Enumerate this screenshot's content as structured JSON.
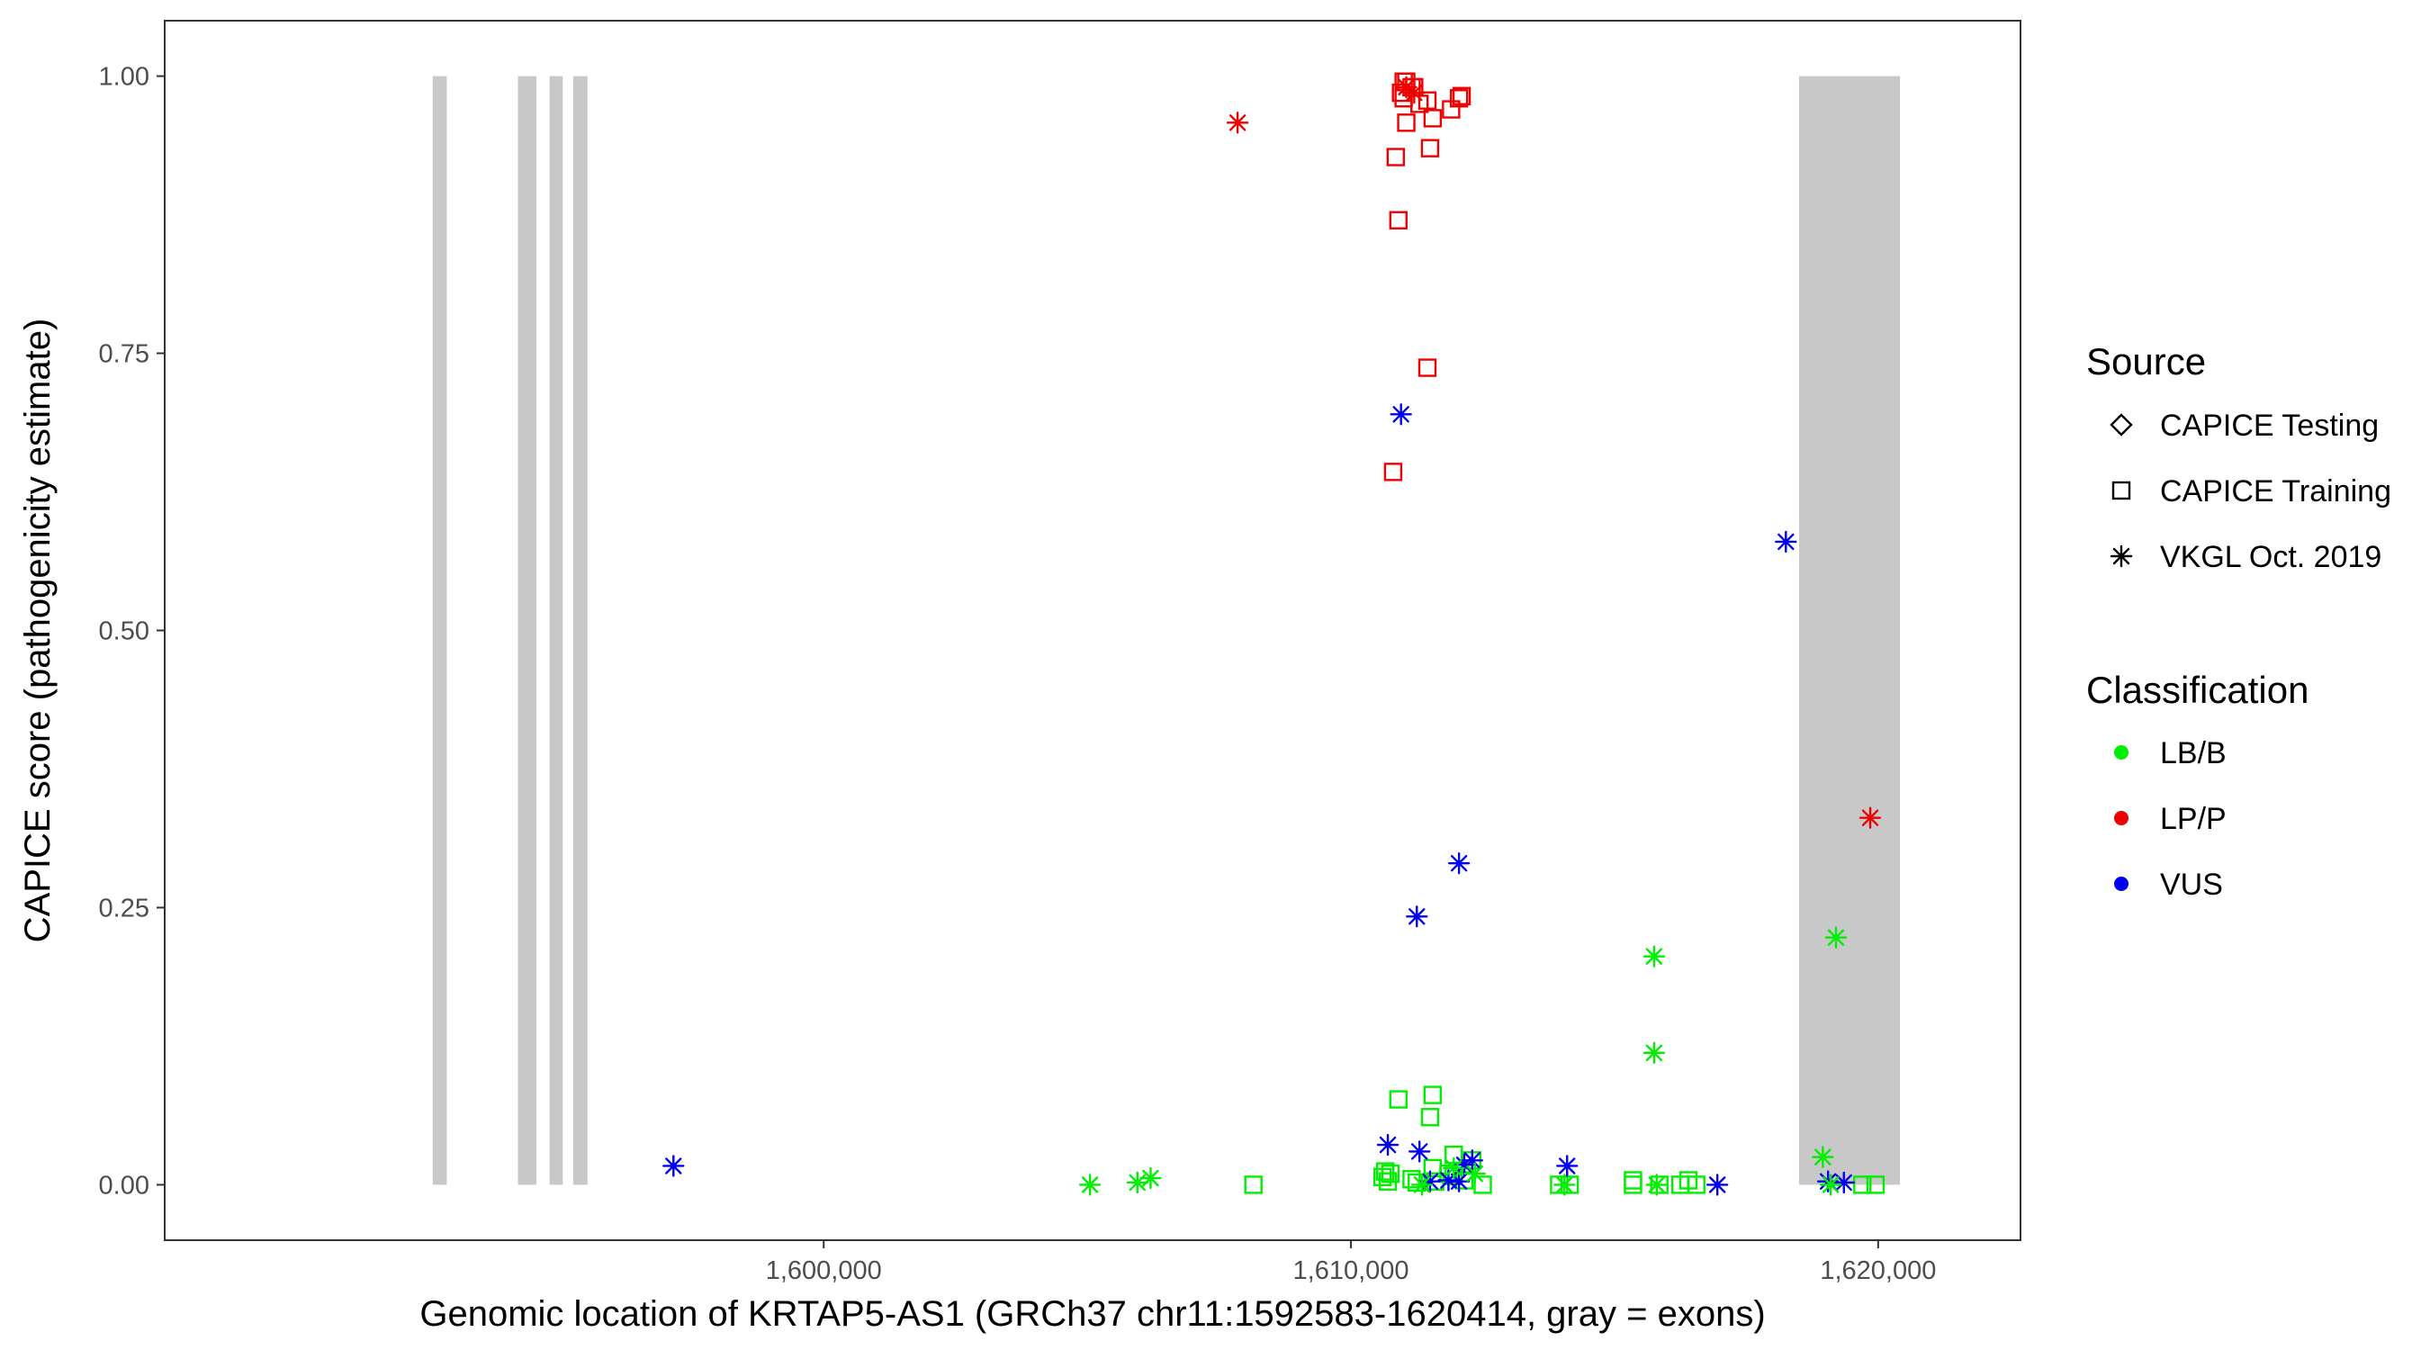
{
  "chart_data": {
    "type": "scatter",
    "xlabel": "Genomic location of KRTAP5-AS1 (GRCh37 chr11:1592583-1620414, gray = exons)",
    "ylabel": "CAPICE score (pathogenicity estimate)",
    "xlim": [
      1587500,
      1622700
    ],
    "ylim": [
      -0.05,
      1.05
    ],
    "x_ticks": [
      1600000,
      1610000,
      1620000
    ],
    "x_tick_labels": [
      "1,600,000",
      "1,610,000",
      "1,620,000"
    ],
    "y_ticks": [
      0,
      0.25,
      0.5,
      0.75,
      1.0
    ],
    "y_tick_labels": [
      "0.00",
      "0.25",
      "0.50",
      "0.75",
      "1.00"
    ],
    "grid": false,
    "exon_color": "#c8c8c8",
    "exons": [
      {
        "start": 1592583,
        "end": 1592850
      },
      {
        "start": 1594200,
        "end": 1594550
      },
      {
        "start": 1594800,
        "end": 1595050
      },
      {
        "start": 1595250,
        "end": 1595520
      },
      {
        "start": 1618500,
        "end": 1620414
      }
    ],
    "legend": {
      "position": "right",
      "source_title": "Source",
      "source_items": [
        {
          "label": "CAPICE Testing",
          "shape": "diamond"
        },
        {
          "label": "CAPICE Training",
          "shape": "square"
        },
        {
          "label": "VKGL Oct. 2019",
          "shape": "asterisk"
        }
      ],
      "class_title": "Classification",
      "class_items": [
        {
          "label": "LB/B",
          "color": "#00ee00"
        },
        {
          "label": "LP/P",
          "color": "#ee0000"
        },
        {
          "label": "VUS",
          "color": "#0000ee"
        }
      ]
    },
    "series": [
      {
        "name": "CAPICE Training",
        "shape": "square",
        "points": [
          {
            "x": 1611000,
            "y": 0.995,
            "c": "LP/P"
          },
          {
            "x": 1611150,
            "y": 0.99,
            "c": "LP/P"
          },
          {
            "x": 1610950,
            "y": 0.985,
            "c": "LP/P"
          },
          {
            "x": 1611200,
            "y": 0.99,
            "c": "LP/P"
          },
          {
            "x": 1611050,
            "y": 0.995,
            "c": "LP/P"
          },
          {
            "x": 1612100,
            "y": 0.982,
            "c": "LP/P"
          },
          {
            "x": 1612050,
            "y": 0.98,
            "c": "LP/P"
          },
          {
            "x": 1611450,
            "y": 0.978,
            "c": "LP/P"
          },
          {
            "x": 1611000,
            "y": 0.98,
            "c": "LP/P"
          },
          {
            "x": 1611300,
            "y": 0.975,
            "c": "LP/P"
          },
          {
            "x": 1611900,
            "y": 0.97,
            "c": "LP/P"
          },
          {
            "x": 1611550,
            "y": 0.962,
            "c": "LP/P"
          },
          {
            "x": 1611050,
            "y": 0.958,
            "c": "LP/P"
          },
          {
            "x": 1611500,
            "y": 0.935,
            "c": "LP/P"
          },
          {
            "x": 1610850,
            "y": 0.927,
            "c": "LP/P"
          },
          {
            "x": 1610900,
            "y": 0.87,
            "c": "LP/P"
          },
          {
            "x": 1611450,
            "y": 0.737,
            "c": "LP/P"
          },
          {
            "x": 1610800,
            "y": 0.643,
            "c": "LP/P"
          },
          {
            "x": 1611550,
            "y": 0.081,
            "c": "LB/B"
          },
          {
            "x": 1610900,
            "y": 0.077,
            "c": "LB/B"
          },
          {
            "x": 1611500,
            "y": 0.061,
            "c": "LB/B"
          },
          {
            "x": 1611950,
            "y": 0.027,
            "c": "LB/B"
          },
          {
            "x": 1612300,
            "y": 0.022,
            "c": "LB/B"
          },
          {
            "x": 1611550,
            "y": 0.015,
            "c": "LB/B"
          },
          {
            "x": 1610650,
            "y": 0.012,
            "c": "LB/B"
          },
          {
            "x": 1610750,
            "y": 0.01,
            "c": "LB/B"
          },
          {
            "x": 1611850,
            "y": 0.01,
            "c": "LB/B"
          },
          {
            "x": 1610600,
            "y": 0.007,
            "c": "LB/B"
          },
          {
            "x": 1611150,
            "y": 0.005,
            "c": "LB/B"
          },
          {
            "x": 1611950,
            "y": 0.008,
            "c": "LB/B"
          },
          {
            "x": 1610700,
            "y": 0.003,
            "c": "LB/B"
          },
          {
            "x": 1611250,
            "y": 0.002,
            "c": "LB/B"
          },
          {
            "x": 1611600,
            "y": 0.003,
            "c": "LB/B"
          },
          {
            "x": 1612150,
            "y": 0.004,
            "c": "LB/B"
          },
          {
            "x": 1612500,
            "y": 0.0,
            "c": "LB/B"
          },
          {
            "x": 1608150,
            "y": 0.0,
            "c": "LB/B"
          },
          {
            "x": 1613950,
            "y": 0.0,
            "c": "LB/B"
          },
          {
            "x": 1614150,
            "y": 0.0,
            "c": "LB/B"
          },
          {
            "x": 1615350,
            "y": 0.004,
            "c": "LB/B"
          },
          {
            "x": 1615350,
            "y": 0.0,
            "c": "LB/B"
          },
          {
            "x": 1615850,
            "y": 0.0,
            "c": "LB/B"
          },
          {
            "x": 1616250,
            "y": 0.0,
            "c": "LB/B"
          },
          {
            "x": 1616400,
            "y": 0.004,
            "c": "LB/B"
          },
          {
            "x": 1616550,
            "y": 0.0,
            "c": "LB/B"
          },
          {
            "x": 1619700,
            "y": 0.0,
            "c": "LB/B"
          },
          {
            "x": 1619950,
            "y": 0.0,
            "c": "LB/B"
          }
        ]
      },
      {
        "name": "VKGL Oct. 2019",
        "shape": "asterisk",
        "points": [
          {
            "x": 1607850,
            "y": 0.958,
            "c": "LP/P"
          },
          {
            "x": 1611050,
            "y": 0.99,
            "c": "LP/P"
          },
          {
            "x": 1611200,
            "y": 0.985,
            "c": "LP/P"
          },
          {
            "x": 1619850,
            "y": 0.331,
            "c": "LP/P"
          },
          {
            "x": 1610950,
            "y": 0.695,
            "c": "VUS"
          },
          {
            "x": 1618250,
            "y": 0.58,
            "c": "VUS"
          },
          {
            "x": 1612050,
            "y": 0.29,
            "c": "VUS"
          },
          {
            "x": 1611250,
            "y": 0.242,
            "c": "VUS"
          },
          {
            "x": 1597150,
            "y": 0.017,
            "c": "VUS"
          },
          {
            "x": 1610700,
            "y": 0.036,
            "c": "VUS"
          },
          {
            "x": 1611300,
            "y": 0.03,
            "c": "VUS"
          },
          {
            "x": 1612300,
            "y": 0.022,
            "c": "VUS"
          },
          {
            "x": 1612150,
            "y": 0.018,
            "c": "VUS"
          },
          {
            "x": 1614100,
            "y": 0.017,
            "c": "VUS"
          },
          {
            "x": 1611500,
            "y": 0.003,
            "c": "VUS"
          },
          {
            "x": 1611850,
            "y": 0.004,
            "c": "VUS"
          },
          {
            "x": 1612050,
            "y": 0.003,
            "c": "VUS"
          },
          {
            "x": 1616950,
            "y": 0.0,
            "c": "VUS"
          },
          {
            "x": 1619050,
            "y": 0.003,
            "c": "VUS"
          },
          {
            "x": 1619350,
            "y": 0.002,
            "c": "VUS"
          },
          {
            "x": 1615750,
            "y": 0.206,
            "c": "LB/B"
          },
          {
            "x": 1619200,
            "y": 0.223,
            "c": "LB/B"
          },
          {
            "x": 1615750,
            "y": 0.119,
            "c": "LB/B"
          },
          {
            "x": 1618950,
            "y": 0.025,
            "c": "LB/B"
          },
          {
            "x": 1611950,
            "y": 0.015,
            "c": "LB/B"
          },
          {
            "x": 1612350,
            "y": 0.01,
            "c": "LB/B"
          },
          {
            "x": 1606200,
            "y": 0.006,
            "c": "LB/B"
          },
          {
            "x": 1605050,
            "y": 0.0,
            "c": "LB/B"
          },
          {
            "x": 1605950,
            "y": 0.002,
            "c": "LB/B"
          },
          {
            "x": 1611350,
            "y": 0.0,
            "c": "LB/B"
          },
          {
            "x": 1614050,
            "y": 0.0,
            "c": "LB/B"
          },
          {
            "x": 1615800,
            "y": 0.0,
            "c": "LB/B"
          },
          {
            "x": 1619100,
            "y": 0.0,
            "c": "LB/B"
          }
        ]
      }
    ]
  }
}
